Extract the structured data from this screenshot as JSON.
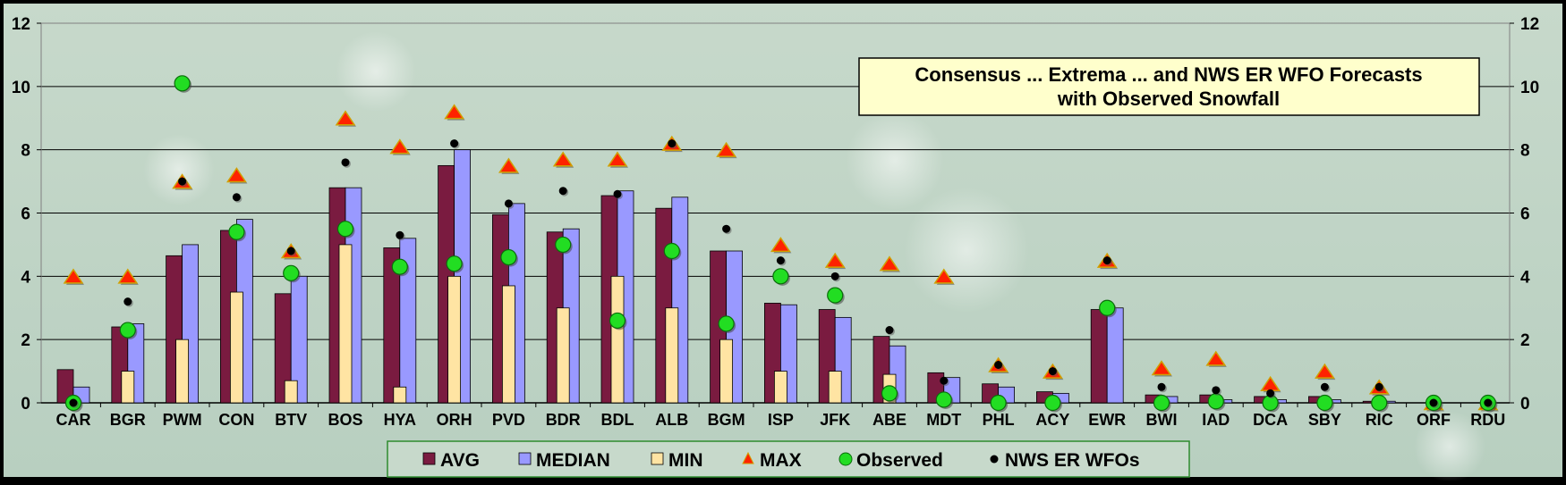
{
  "chart_data": {
    "type": "bar",
    "title_lines": [
      "Consensus ... Extrema ... and NWS ER WFO Forecasts",
      "with Observed Snowfall"
    ],
    "xlabel": "",
    "ylabel": "",
    "ylim": [
      0,
      12
    ],
    "yticks": [
      0,
      2,
      4,
      6,
      8,
      10,
      12
    ],
    "grid": true,
    "legend_position": "bottom",
    "categories": [
      "CAR",
      "BGR",
      "PWM",
      "CON",
      "BTV",
      "BOS",
      "HYA",
      "ORH",
      "PVD",
      "BDR",
      "BDL",
      "ALB",
      "BGM",
      "ISP",
      "JFK",
      "ABE",
      "MDT",
      "PHL",
      "ACY",
      "EWR",
      "BWI",
      "IAD",
      "DCA",
      "SBY",
      "RIC",
      "ORF",
      "RDU"
    ],
    "series": [
      {
        "name": "AVG",
        "kind": "bar",
        "color": "#7a1b40",
        "values": [
          1.05,
          2.4,
          4.65,
          5.45,
          3.45,
          6.8,
          4.9,
          7.5,
          5.95,
          5.4,
          6.55,
          6.15,
          4.8,
          3.15,
          2.95,
          2.1,
          0.95,
          0.6,
          0.35,
          2.95,
          0.25,
          0.25,
          0.2,
          0.2,
          0.05,
          0.0,
          0.0
        ]
      },
      {
        "name": "MEDIAN",
        "kind": "bar",
        "color": "#9999ff",
        "values": [
          0.5,
          2.5,
          5.0,
          5.8,
          4.0,
          6.8,
          5.2,
          8.0,
          6.3,
          5.5,
          6.7,
          6.5,
          4.8,
          3.1,
          2.7,
          1.8,
          0.8,
          0.5,
          0.3,
          3.0,
          0.2,
          0.1,
          0.1,
          0.1,
          0.05,
          0.0,
          0.0
        ]
      },
      {
        "name": "MIN",
        "kind": "bar",
        "color": "#ffe4a3",
        "values": [
          0,
          1.0,
          2.0,
          3.5,
          0.7,
          5.0,
          0.5,
          4.0,
          3.7,
          3.0,
          4.0,
          3.0,
          2.0,
          1.0,
          1.0,
          0.9,
          0,
          0,
          0,
          0,
          0,
          0,
          0,
          0,
          0,
          0,
          0
        ]
      },
      {
        "name": "MAX",
        "kind": "triangle",
        "color": "#ff2200",
        "values": [
          4.0,
          4.0,
          7.0,
          7.2,
          4.8,
          9.0,
          8.1,
          9.2,
          7.5,
          7.7,
          7.7,
          8.2,
          8.0,
          5.0,
          4.5,
          4.4,
          4.0,
          1.2,
          1.0,
          4.5,
          1.1,
          1.4,
          0.6,
          1.0,
          0.5,
          0.0,
          0.0
        ]
      },
      {
        "name": "Observed",
        "kind": "circle",
        "color": "#22dd22",
        "values": [
          0.0,
          2.3,
          10.1,
          5.4,
          4.1,
          5.5,
          4.3,
          4.4,
          4.6,
          5.0,
          2.6,
          4.8,
          2.5,
          4.0,
          3.4,
          0.3,
          0.1,
          0.0,
          0.0,
          3.0,
          0.0,
          0.05,
          0.0,
          0.0,
          0.0,
          0.0,
          0.0
        ]
      },
      {
        "name": "NWS ER WFOs",
        "kind": "dot",
        "color": "#000000",
        "values": [
          0.0,
          3.2,
          7.0,
          6.5,
          4.8,
          7.6,
          5.3,
          8.2,
          6.3,
          6.7,
          6.6,
          8.2,
          5.5,
          4.5,
          4.0,
          2.3,
          0.7,
          1.2,
          1.0,
          4.5,
          0.5,
          0.4,
          0.3,
          0.5,
          0.5,
          0.0,
          0.0
        ]
      }
    ]
  }
}
